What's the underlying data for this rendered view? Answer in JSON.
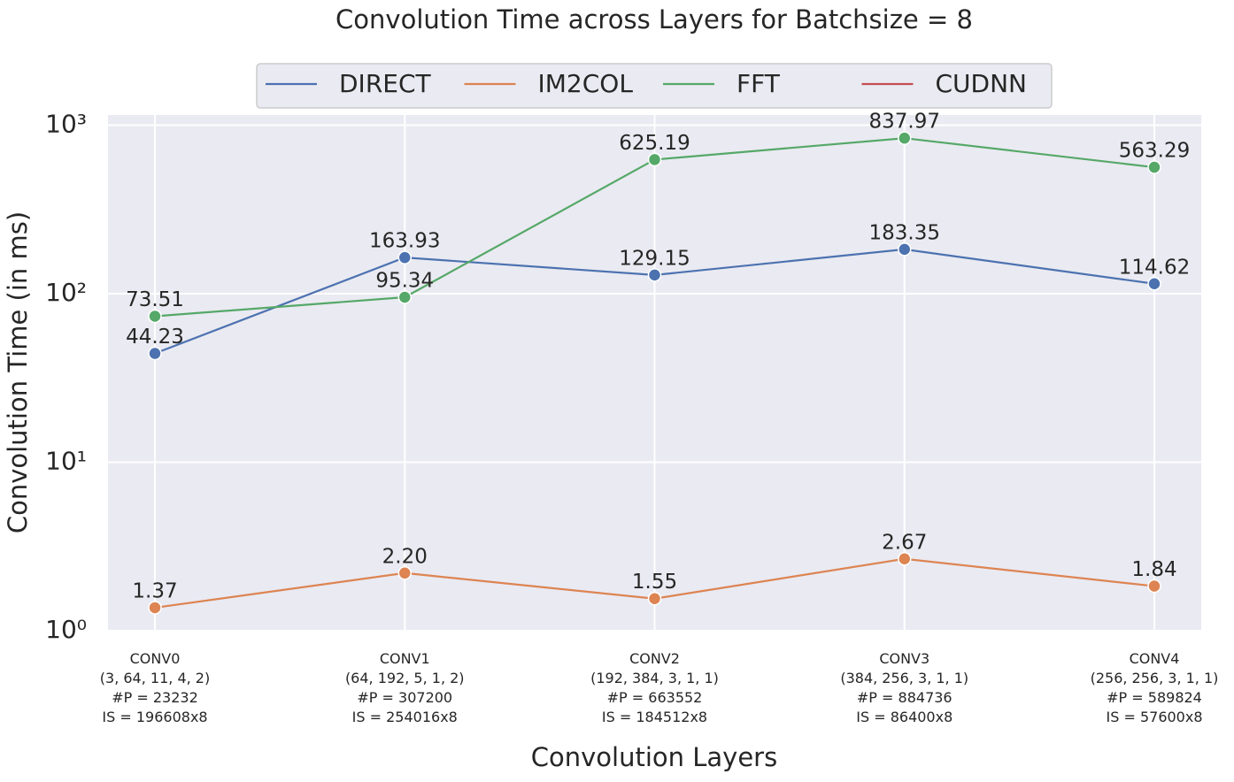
{
  "chart_data": {
    "type": "line",
    "title": "Convolution Time across Layers for Batchsize = 8",
    "xlabel": "Convolution Layers",
    "ylabel": "Convolution Time (in ms)",
    "categories": [
      "CONV0\n(3, 64, 11, 4, 2)\n#P = 23232\nIS = 196608x8",
      "CONV1\n(64, 192, 5, 1, 2)\n#P = 307200\nIS = 254016x8",
      "CONV2\n(192, 384, 3, 1, 1)\n#P = 663552\nIS = 184512x8",
      "CONV3\n(384, 256, 3, 1, 1)\n#P = 884736\nIS = 86400x8",
      "CONV4\n(256, 256, 3, 1, 1)\n#P = 589824\nIS = 57600x8"
    ],
    "series": [
      {
        "name": "DIRECT",
        "color": "#4c72b0",
        "values": [
          44.23,
          163.93,
          129.15,
          183.35,
          114.62
        ],
        "value_labels": [
          "44.23",
          "163.93",
          "129.15",
          "183.35",
          "114.62"
        ]
      },
      {
        "name": "IM2COL",
        "color": "#dd8452",
        "values": [
          1.37,
          2.2,
          1.55,
          2.67,
          1.84
        ],
        "value_labels": [
          "1.37",
          "2.20",
          "1.55",
          "2.67",
          "1.84"
        ]
      },
      {
        "name": "FFT",
        "color": "#55a868",
        "values": [
          73.51,
          95.34,
          625.19,
          837.97,
          563.29
        ],
        "value_labels": [
          "73.51",
          "95.34",
          "625.19",
          "837.97",
          "563.29"
        ]
      },
      {
        "name": "CUDNN",
        "color": "#c44e52",
        "values": [
          null,
          null,
          null,
          null,
          null
        ]
      }
    ],
    "ylim": [
      1,
      1150
    ],
    "yticks": [
      {
        "value": 1,
        "label": "10⁰"
      },
      {
        "value": 10,
        "label": "10¹"
      },
      {
        "value": 100,
        "label": "10²"
      },
      {
        "value": 1000,
        "label": "10³"
      }
    ],
    "log_scale": true,
    "grid": true,
    "legend": "top"
  }
}
